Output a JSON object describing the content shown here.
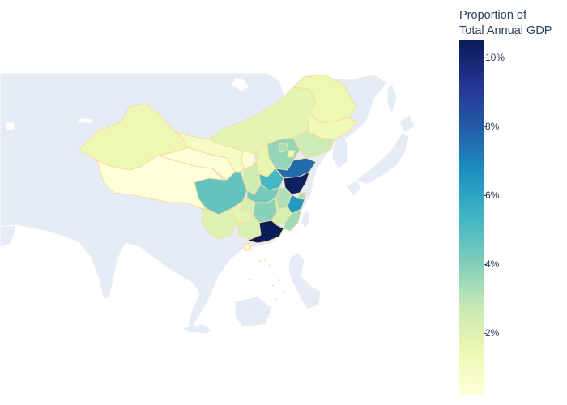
{
  "colorbar": {
    "title_line1": "Proportion of",
    "title_line2": "Total Annual GDP",
    "ticks": [
      {
        "label": "10%",
        "value": 10
      },
      {
        "label": "8%",
        "value": 8
      },
      {
        "label": "6%",
        "value": 6
      },
      {
        "label": "4%",
        "value": 4
      },
      {
        "label": "2%",
        "value": 2
      }
    ],
    "range": [
      0.2,
      10.5
    ],
    "colorscale": [
      "#ffffd9",
      "#edf8b1",
      "#c7e9b4",
      "#7fcdbb",
      "#41b6c4",
      "#1d91c0",
      "#225ea8",
      "#253494",
      "#081d58"
    ]
  },
  "colors": {
    "land": "#e5ecf6",
    "border": "#f6dba2"
  },
  "regions": [
    {
      "name": "Guangdong",
      "value": 10.6
    },
    {
      "name": "Jiangsu",
      "value": 10.3
    },
    {
      "name": "Shandong",
      "value": 7.6
    },
    {
      "name": "Zhejiang",
      "value": 6.4
    },
    {
      "name": "Henan",
      "value": 5.3
    },
    {
      "name": "Sichuan",
      "value": 4.6
    },
    {
      "name": "Hubei",
      "value": 4.3
    },
    {
      "name": "Hebei",
      "value": 3.7
    },
    {
      "name": "Hunan",
      "value": 3.9
    },
    {
      "name": "Fujian",
      "value": 3.5
    },
    {
      "name": "Anhui",
      "value": 3.2
    },
    {
      "name": "Beijing",
      "value": 3.3
    },
    {
      "name": "Shanghai",
      "value": 3.3
    },
    {
      "name": "Liaoning",
      "value": 2.6
    },
    {
      "name": "Jiangxi",
      "value": 2.3
    },
    {
      "name": "Shaanxi",
      "value": 2.5
    },
    {
      "name": "Guangxi",
      "value": 2.2
    },
    {
      "name": "Yunnan",
      "value": 2.0
    },
    {
      "name": "Heilongjiang",
      "value": 1.5
    },
    {
      "name": "Inner Mongolia",
      "value": 1.8
    },
    {
      "name": "Guizhou",
      "value": 1.8
    },
    {
      "name": "Chongqing",
      "value": 2.3
    },
    {
      "name": "Shanxi",
      "value": 1.7
    },
    {
      "name": "Jilin",
      "value": 1.3
    },
    {
      "name": "Xinjiang",
      "value": 1.4
    },
    {
      "name": "Gansu",
      "value": 0.9
    },
    {
      "name": "Tianjin",
      "value": 1.5
    },
    {
      "name": "Hainan",
      "value": 0.6
    },
    {
      "name": "Ningxia",
      "value": 0.4
    },
    {
      "name": "Qinghai",
      "value": 0.3
    },
    {
      "name": "Tibet",
      "value": 0.2
    }
  ]
}
